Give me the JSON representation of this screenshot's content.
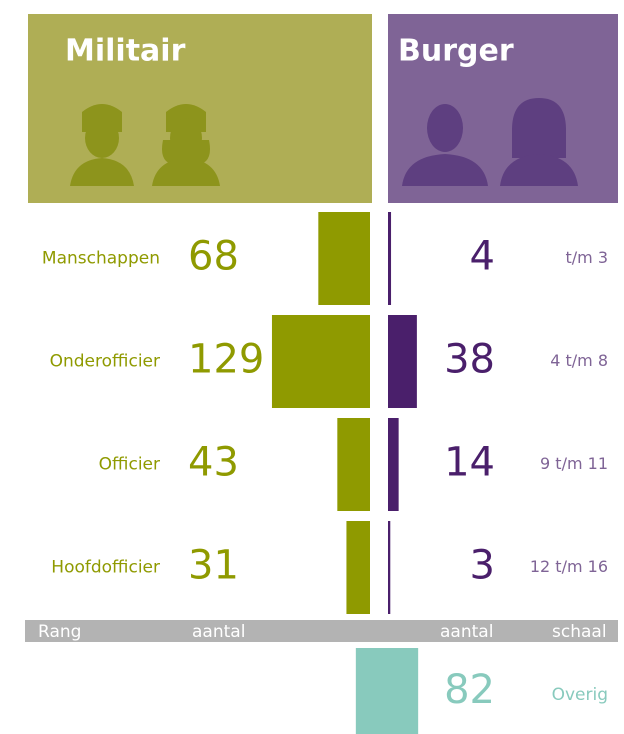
{
  "chart_data": {
    "type": "butterfly",
    "categories": [
      "Manschappen",
      "Onderofficier",
      "Officier",
      "Hoofdofficier"
    ],
    "series": [
      {
        "name": "Militair",
        "color": "#8f9a00",
        "values": [
          68,
          129,
          43,
          31
        ]
      },
      {
        "name": "Burger",
        "color": "#4a1f6b",
        "values": [
          4,
          38,
          14,
          3
        ]
      }
    ],
    "scale_labels": [
      "t/m 3",
      "4 t/m 8",
      "9 t/m 11",
      "12 t/m 16"
    ],
    "axis_labels": [
      "Rang",
      "aantal",
      "aantal",
      "schaal"
    ],
    "other": {
      "label": "Overig",
      "value": 82,
      "color": "#88cabd"
    }
  }
}
